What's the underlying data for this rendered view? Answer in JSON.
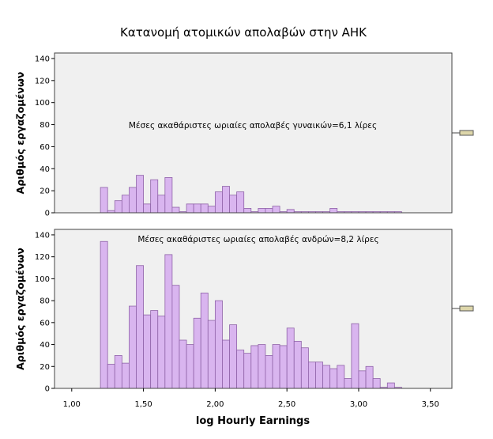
{
  "chart_data": {
    "type": "bar",
    "title": "Κατανομή ατομικών απολαβών στην ΑΗΚ",
    "xlabel": "log Hourly Earnings",
    "ylabel": "Αριθμός εργαζομένων",
    "xlim": [
      0.88,
      3.65
    ],
    "ylim": [
      0,
      145
    ],
    "x_ticks": [
      "1,00",
      "1,50",
      "2,00",
      "2,50",
      "3,00",
      "3,50"
    ],
    "x_tick_values": [
      1.0,
      1.5,
      2.0,
      2.5,
      3.0,
      3.5
    ],
    "y_ticks": [
      "0",
      "20",
      "40",
      "60",
      "80",
      "100",
      "120",
      "140"
    ],
    "y_tick_values": [
      0,
      20,
      40,
      60,
      80,
      100,
      120,
      140
    ],
    "bin_width": 0.05,
    "bar_color": "#d9b5ef",
    "bar_stroke": "#8f63a8",
    "panel_background": "#f0f0f0",
    "grid": false,
    "series": [
      {
        "annotation": "Μέσες ακαθάριστες ωριαίες απολαβές γυναικών=6,1 λίρες",
        "bins": [
          {
            "x": 1.2,
            "y": 23
          },
          {
            "x": 1.25,
            "y": 2
          },
          {
            "x": 1.3,
            "y": 11
          },
          {
            "x": 1.35,
            "y": 16
          },
          {
            "x": 1.4,
            "y": 23
          },
          {
            "x": 1.45,
            "y": 34
          },
          {
            "x": 1.5,
            "y": 8
          },
          {
            "x": 1.55,
            "y": 30
          },
          {
            "x": 1.6,
            "y": 16
          },
          {
            "x": 1.65,
            "y": 32
          },
          {
            "x": 1.7,
            "y": 5
          },
          {
            "x": 1.75,
            "y": 1
          },
          {
            "x": 1.8,
            "y": 8
          },
          {
            "x": 1.85,
            "y": 8
          },
          {
            "x": 1.9,
            "y": 8
          },
          {
            "x": 1.95,
            "y": 6
          },
          {
            "x": 2.0,
            "y": 19
          },
          {
            "x": 2.05,
            "y": 24
          },
          {
            "x": 2.1,
            "y": 16
          },
          {
            "x": 2.15,
            "y": 19
          },
          {
            "x": 2.2,
            "y": 4
          },
          {
            "x": 2.25,
            "y": 1
          },
          {
            "x": 2.3,
            "y": 4
          },
          {
            "x": 2.35,
            "y": 4
          },
          {
            "x": 2.4,
            "y": 6
          },
          {
            "x": 2.45,
            "y": 1
          },
          {
            "x": 2.5,
            "y": 3
          },
          {
            "x": 2.55,
            "y": 1
          },
          {
            "x": 2.6,
            "y": 1
          },
          {
            "x": 2.65,
            "y": 1
          },
          {
            "x": 2.7,
            "y": 1
          },
          {
            "x": 2.75,
            "y": 1
          },
          {
            "x": 2.8,
            "y": 4
          },
          {
            "x": 2.85,
            "y": 1
          },
          {
            "x": 2.9,
            "y": 1
          },
          {
            "x": 2.95,
            "y": 1
          },
          {
            "x": 3.0,
            "y": 1
          },
          {
            "x": 3.05,
            "y": 1
          },
          {
            "x": 3.1,
            "y": 1
          },
          {
            "x": 3.15,
            "y": 1
          },
          {
            "x": 3.2,
            "y": 1
          },
          {
            "x": 3.25,
            "y": 1
          }
        ]
      },
      {
        "annotation": "Μέσες ακαθάριστες ωριαίες απολαβές ανδρών=8,2 λίρες",
        "bins": [
          {
            "x": 1.2,
            "y": 134
          },
          {
            "x": 1.25,
            "y": 22
          },
          {
            "x": 1.3,
            "y": 30
          },
          {
            "x": 1.35,
            "y": 23
          },
          {
            "x": 1.4,
            "y": 75
          },
          {
            "x": 1.45,
            "y": 112
          },
          {
            "x": 1.5,
            "y": 67
          },
          {
            "x": 1.55,
            "y": 71
          },
          {
            "x": 1.6,
            "y": 66
          },
          {
            "x": 1.65,
            "y": 122
          },
          {
            "x": 1.7,
            "y": 94
          },
          {
            "x": 1.75,
            "y": 44
          },
          {
            "x": 1.8,
            "y": 40
          },
          {
            "x": 1.85,
            "y": 64
          },
          {
            "x": 1.9,
            "y": 87
          },
          {
            "x": 1.95,
            "y": 62
          },
          {
            "x": 2.0,
            "y": 80
          },
          {
            "x": 2.05,
            "y": 44
          },
          {
            "x": 2.1,
            "y": 58
          },
          {
            "x": 2.15,
            "y": 35
          },
          {
            "x": 2.2,
            "y": 32
          },
          {
            "x": 2.25,
            "y": 39
          },
          {
            "x": 2.3,
            "y": 40
          },
          {
            "x": 2.35,
            "y": 30
          },
          {
            "x": 2.4,
            "y": 40
          },
          {
            "x": 2.45,
            "y": 39
          },
          {
            "x": 2.5,
            "y": 55
          },
          {
            "x": 2.55,
            "y": 43
          },
          {
            "x": 2.6,
            "y": 37
          },
          {
            "x": 2.65,
            "y": 24
          },
          {
            "x": 2.7,
            "y": 24
          },
          {
            "x": 2.75,
            "y": 21
          },
          {
            "x": 2.8,
            "y": 18
          },
          {
            "x": 2.85,
            "y": 21
          },
          {
            "x": 2.9,
            "y": 9
          },
          {
            "x": 2.95,
            "y": 59
          },
          {
            "x": 3.0,
            "y": 16
          },
          {
            "x": 3.05,
            "y": 20
          },
          {
            "x": 3.1,
            "y": 9
          },
          {
            "x": 3.15,
            "y": 1
          },
          {
            "x": 3.2,
            "y": 5
          },
          {
            "x": 3.25,
            "y": 1
          }
        ]
      }
    ]
  }
}
